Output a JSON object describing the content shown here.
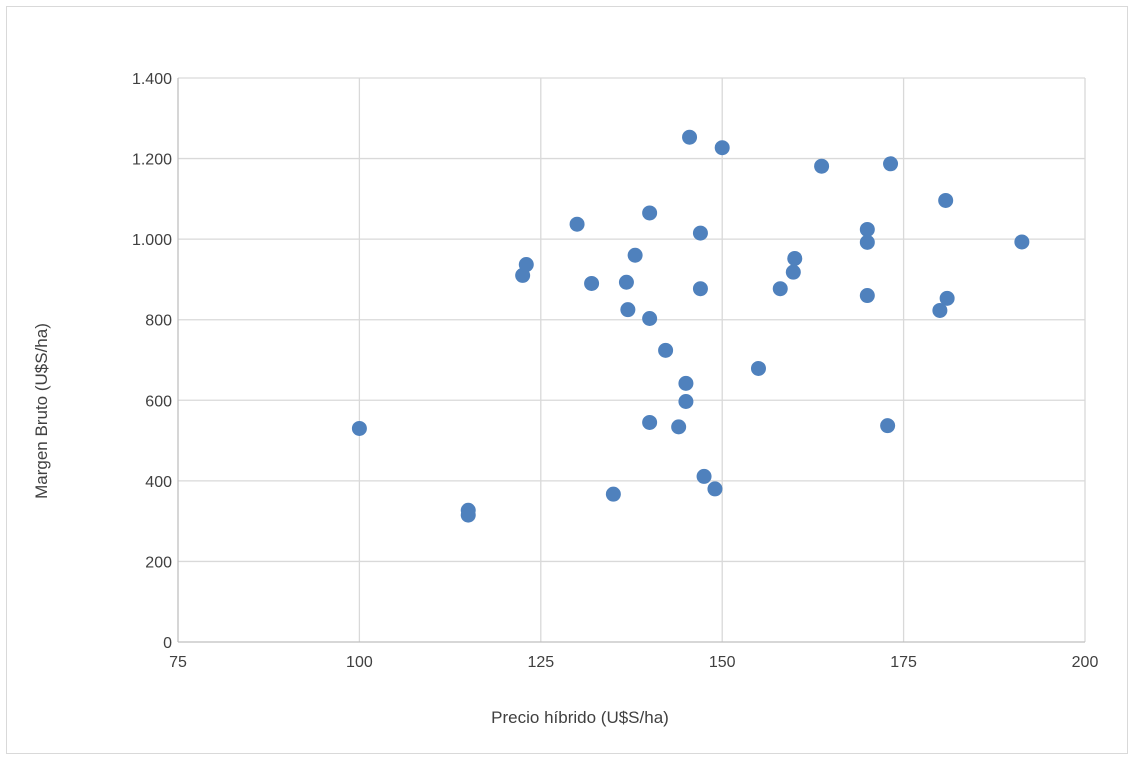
{
  "chart_data": {
    "type": "scatter",
    "title": "",
    "xlabel": "Precio híbrido (U$S/ha)",
    "ylabel": "Margen Bruto (U$S/ha)",
    "xlim": [
      75,
      200
    ],
    "ylim": [
      0,
      1400
    ],
    "x_ticks": [
      75,
      100,
      125,
      150,
      175,
      200
    ],
    "x_tick_labels": [
      "75",
      "100",
      "125",
      "150",
      "175",
      "200"
    ],
    "y_ticks": [
      0,
      200,
      400,
      600,
      800,
      1000,
      1200,
      1400
    ],
    "y_tick_labels": [
      "0",
      "200",
      "400",
      "600",
      "800",
      "1.000",
      "1.200",
      "1.400"
    ],
    "grid": true,
    "legend": "none",
    "marker_color": "#4f81bd",
    "points": [
      {
        "x": 100,
        "y": 530
      },
      {
        "x": 115,
        "y": 327
      },
      {
        "x": 115,
        "y": 315
      },
      {
        "x": 122.5,
        "y": 910
      },
      {
        "x": 123,
        "y": 937
      },
      {
        "x": 130,
        "y": 1037
      },
      {
        "x": 132,
        "y": 890
      },
      {
        "x": 135,
        "y": 367
      },
      {
        "x": 136.8,
        "y": 893
      },
      {
        "x": 137,
        "y": 825
      },
      {
        "x": 138,
        "y": 960
      },
      {
        "x": 140,
        "y": 1065
      },
      {
        "x": 140,
        "y": 803
      },
      {
        "x": 140,
        "y": 545
      },
      {
        "x": 142.2,
        "y": 724
      },
      {
        "x": 144,
        "y": 534
      },
      {
        "x": 145,
        "y": 642
      },
      {
        "x": 145,
        "y": 597
      },
      {
        "x": 145.5,
        "y": 1253
      },
      {
        "x": 147,
        "y": 1015
      },
      {
        "x": 147,
        "y": 877
      },
      {
        "x": 147.5,
        "y": 411
      },
      {
        "x": 149,
        "y": 380
      },
      {
        "x": 150,
        "y": 1227
      },
      {
        "x": 155,
        "y": 679
      },
      {
        "x": 158,
        "y": 877
      },
      {
        "x": 159.8,
        "y": 918
      },
      {
        "x": 160,
        "y": 952
      },
      {
        "x": 163.7,
        "y": 1181
      },
      {
        "x": 170,
        "y": 1024
      },
      {
        "x": 170,
        "y": 992
      },
      {
        "x": 170,
        "y": 860
      },
      {
        "x": 172.8,
        "y": 537
      },
      {
        "x": 173.2,
        "y": 1187
      },
      {
        "x": 180,
        "y": 823
      },
      {
        "x": 180.8,
        "y": 1096
      },
      {
        "x": 181,
        "y": 853
      },
      {
        "x": 191.3,
        "y": 993
      }
    ]
  }
}
